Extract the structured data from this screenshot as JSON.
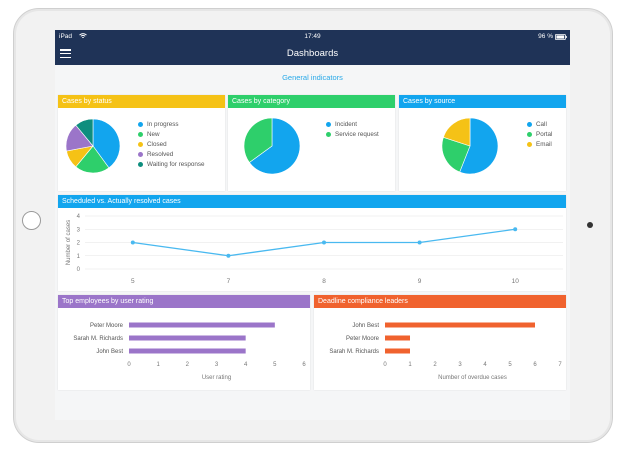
{
  "status_bar": {
    "device": "iPad",
    "time": "17:49",
    "battery": "96 %"
  },
  "app_bar": {
    "title": "Dashboards"
  },
  "section": {
    "title": "General indicators"
  },
  "colors": {
    "nav": "#1f3357",
    "yellow": "#f5c216",
    "green": "#2ecf6b",
    "blue": "#12a5ee",
    "purple": "#9b75c9",
    "teal": "#0e8e7e",
    "orange": "#f0622e",
    "line": "#49b9f0"
  },
  "cards": {
    "status": {
      "title": "Cases by status"
    },
    "category": {
      "title": "Cases by category"
    },
    "source": {
      "title": "Cases by source"
    },
    "scheduled": {
      "title": "Scheduled vs. Actually resolved cases"
    },
    "employees": {
      "title": "Top employees by user rating"
    },
    "deadline": {
      "title": "Deadline compliance leaders"
    }
  },
  "chart_data": [
    {
      "type": "pie",
      "title": "Cases by status",
      "categories": [
        "In progress",
        "New",
        "Closed",
        "Resolved",
        "Waiting for response"
      ],
      "values": [
        40,
        21,
        11,
        17,
        11
      ],
      "colors": [
        "#12a5ee",
        "#2ecf6b",
        "#f5c216",
        "#9b75c9",
        "#0e8e7e"
      ]
    },
    {
      "type": "pie",
      "title": "Cases by category",
      "categories": [
        "Incident",
        "Service request"
      ],
      "values": [
        65,
        35
      ],
      "colors": [
        "#12a5ee",
        "#2ecf6b"
      ]
    },
    {
      "type": "pie",
      "title": "Cases by source",
      "categories": [
        "Call",
        "Portal",
        "Email"
      ],
      "values": [
        56,
        24,
        20
      ],
      "colors": [
        "#12a5ee",
        "#2ecf6b",
        "#f5c216"
      ]
    },
    {
      "type": "line",
      "title": "Scheduled vs. Actually resolved cases",
      "x": [
        5,
        7,
        8,
        9,
        10
      ],
      "y": [
        2,
        1,
        2,
        2,
        3
      ],
      "ylabel": "Number of cases",
      "ylim": [
        0,
        4
      ],
      "yticks": [
        0,
        1,
        2,
        3,
        4
      ],
      "grid": true,
      "color": "#49b9f0"
    },
    {
      "type": "bar",
      "orientation": "horizontal",
      "title": "Top employees by user rating",
      "categories": [
        "Peter Moore",
        "Sarah M. Richards",
        "John Best"
      ],
      "values": [
        5,
        4,
        4
      ],
      "xlabel": "User rating",
      "xlim": [
        0,
        6
      ],
      "xticks": [
        0,
        1,
        2,
        3,
        4,
        5,
        6
      ],
      "color": "#9b75c9"
    },
    {
      "type": "bar",
      "orientation": "horizontal",
      "title": "Deadline compliance leaders",
      "categories": [
        "John Best",
        "Peter Moore",
        "Sarah M. Richards"
      ],
      "values": [
        6,
        1,
        1
      ],
      "xlabel": "Number of overdue cases",
      "xlim": [
        0,
        7
      ],
      "xticks": [
        0,
        1,
        2,
        3,
        4,
        5,
        6,
        7
      ],
      "color": "#f0622e"
    }
  ]
}
